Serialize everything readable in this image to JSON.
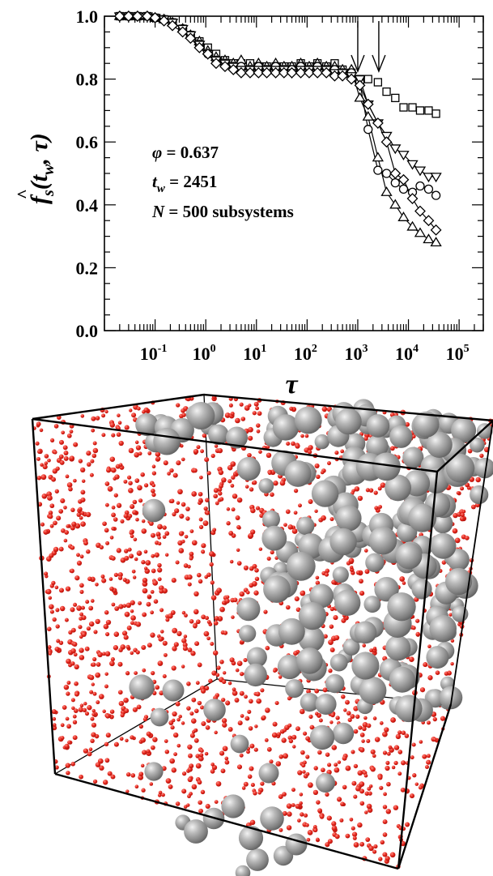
{
  "chart_data": [
    {
      "type": "scatter",
      "title": "",
      "xlabel": "τ",
      "ylabel_main": "f",
      "ylabel_sub": "s",
      "ylabel_args": "(t",
      "ylabel_args_sub": "w",
      "ylabel_tail": ", τ)",
      "xscale": "log",
      "xlim": [
        0.01,
        300000
      ],
      "ylim": [
        0.0,
        1.0
      ],
      "x_ticks": [
        {
          "base": "10",
          "exp": "-1",
          "value": 0.1
        },
        {
          "base": "10",
          "exp": "0",
          "value": 1
        },
        {
          "base": "10",
          "exp": "1",
          "value": 10
        },
        {
          "base": "10",
          "exp": "2",
          "value": 100
        },
        {
          "base": "10",
          "exp": "3",
          "value": 1000
        },
        {
          "base": "10",
          "exp": "4",
          "value": 10000
        },
        {
          "base": "10",
          "exp": "5",
          "value": 100000
        }
      ],
      "y_ticks": [
        "0.0",
        "0.2",
        "0.4",
        "0.6",
        "0.8",
        "1.0"
      ],
      "grid": false,
      "annotations": {
        "phi_symbol": "φ",
        "phi_text": " = 0.637",
        "tw_symbol": "t",
        "tw_sub": "w",
        "tw_text": " = 2451",
        "n_symbol": "N",
        "n_text": " = 500 subsystems"
      },
      "arrows_at_x": [
        1000,
        2600
      ],
      "series": [
        {
          "marker": "square",
          "connected": false,
          "x": [
            0.02,
            0.03,
            0.045,
            0.07,
            0.1,
            0.15,
            0.22,
            0.35,
            0.5,
            0.75,
            1.1,
            1.6,
            2.4,
            3.5,
            5,
            7.5,
            11,
            16,
            24,
            35,
            50,
            75,
            110,
            160,
            240,
            350,
            500,
            750,
            1100,
            1600,
            2500,
            3700,
            5500,
            8000,
            12000,
            17000,
            25000,
            35000
          ],
          "y": [
            1.0,
            1.0,
            1.0,
            1.0,
            0.995,
            0.99,
            0.98,
            0.96,
            0.94,
            0.92,
            0.9,
            0.88,
            0.86,
            0.85,
            0.85,
            0.85,
            0.84,
            0.84,
            0.84,
            0.84,
            0.84,
            0.85,
            0.84,
            0.85,
            0.84,
            0.85,
            0.83,
            0.82,
            0.8,
            0.8,
            0.79,
            0.76,
            0.74,
            0.71,
            0.71,
            0.7,
            0.7,
            0.69
          ]
        },
        {
          "marker": "triangle-up",
          "connected": true,
          "x": [
            0.02,
            0.03,
            0.045,
            0.07,
            0.1,
            0.15,
            0.22,
            0.35,
            0.5,
            0.75,
            1.1,
            1.6,
            2.4,
            3.5,
            5,
            7.5,
            11,
            16,
            24,
            35,
            50,
            75,
            110,
            160,
            240,
            350,
            500,
            750,
            1100,
            1600,
            2500,
            3700,
            5500,
            8000,
            12000,
            17000,
            25000,
            35000
          ],
          "y": [
            1.0,
            1.0,
            1.0,
            1.0,
            0.995,
            0.99,
            0.98,
            0.96,
            0.94,
            0.92,
            0.89,
            0.87,
            0.86,
            0.85,
            0.86,
            0.84,
            0.85,
            0.84,
            0.85,
            0.84,
            0.84,
            0.85,
            0.84,
            0.85,
            0.84,
            0.84,
            0.83,
            0.83,
            0.74,
            0.68,
            0.55,
            0.44,
            0.4,
            0.36,
            0.33,
            0.31,
            0.29,
            0.28
          ]
        },
        {
          "marker": "circle",
          "connected": true,
          "x": [
            0.02,
            0.03,
            0.045,
            0.07,
            0.1,
            0.15,
            0.22,
            0.35,
            0.5,
            0.75,
            1.1,
            1.6,
            2.4,
            3.5,
            5,
            7.5,
            11,
            16,
            24,
            35,
            50,
            75,
            110,
            160,
            240,
            350,
            500,
            750,
            1100,
            1600,
            2500,
            3700,
            5500,
            8000,
            12000,
            17000,
            25000,
            35000
          ],
          "y": [
            1.0,
            1.0,
            1.0,
            1.0,
            0.995,
            0.99,
            0.98,
            0.96,
            0.94,
            0.91,
            0.88,
            0.86,
            0.85,
            0.84,
            0.84,
            0.83,
            0.84,
            0.83,
            0.84,
            0.83,
            0.83,
            0.84,
            0.83,
            0.84,
            0.83,
            0.83,
            0.82,
            0.82,
            0.79,
            0.64,
            0.51,
            0.5,
            0.47,
            0.45,
            0.44,
            0.46,
            0.45,
            0.43
          ]
        },
        {
          "marker": "triangle-down",
          "connected": true,
          "x": [
            0.02,
            0.03,
            0.045,
            0.07,
            0.1,
            0.15,
            0.22,
            0.35,
            0.5,
            0.75,
            1.1,
            1.6,
            2.4,
            3.5,
            5,
            7.5,
            11,
            16,
            24,
            35,
            50,
            75,
            110,
            160,
            240,
            350,
            500,
            750,
            1100,
            1600,
            2500,
            3700,
            5500,
            8000,
            12000,
            17000,
            25000,
            35000
          ],
          "y": [
            1.0,
            1.0,
            1.0,
            1.0,
            0.995,
            0.99,
            0.98,
            0.96,
            0.94,
            0.91,
            0.88,
            0.86,
            0.85,
            0.84,
            0.83,
            0.83,
            0.83,
            0.83,
            0.83,
            0.83,
            0.82,
            0.83,
            0.83,
            0.83,
            0.83,
            0.82,
            0.82,
            0.81,
            0.8,
            0.72,
            0.66,
            0.62,
            0.58,
            0.56,
            0.53,
            0.51,
            0.49,
            0.49
          ]
        },
        {
          "marker": "diamond",
          "connected": true,
          "x": [
            0.02,
            0.03,
            0.045,
            0.07,
            0.1,
            0.15,
            0.22,
            0.35,
            0.5,
            0.75,
            1.1,
            1.6,
            2.4,
            3.5,
            5,
            7.5,
            11,
            16,
            24,
            35,
            50,
            75,
            110,
            160,
            240,
            350,
            500,
            750,
            1100,
            1600,
            2500,
            3700,
            5500,
            8000,
            12000,
            17000,
            25000,
            35000
          ],
          "y": [
            1.0,
            1.0,
            1.0,
            1.0,
            0.995,
            0.985,
            0.97,
            0.95,
            0.93,
            0.9,
            0.88,
            0.85,
            0.84,
            0.83,
            0.82,
            0.82,
            0.82,
            0.82,
            0.82,
            0.82,
            0.82,
            0.82,
            0.82,
            0.82,
            0.82,
            0.81,
            0.81,
            0.8,
            0.78,
            0.72,
            0.66,
            0.6,
            0.5,
            0.48,
            0.42,
            0.38,
            0.35,
            0.32
          ]
        }
      ]
    }
  ],
  "colors": {
    "axis": "#000000",
    "marker": "#000000",
    "small_particle": "#d8170f",
    "large_particle": "#9a9a9a",
    "cube_edge": "#000000"
  }
}
